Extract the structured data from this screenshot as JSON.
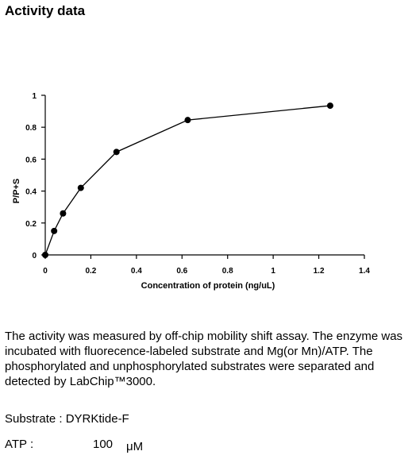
{
  "page": {
    "title": "Activity data",
    "description": "The activity was measured by off-chip mobility shift assay. The enzyme was incubated with fluorecence-labeled  substrate and Mg(or Mn)/ATP. The phosphorylated and unphosphorylated substrates were separated and detected by LabChip™3000.",
    "substrate": "Substrate : DYRKtide-F",
    "atp_label": "ATP :",
    "atp_value": "100",
    "atp_unit": "μM"
  },
  "chart_data": {
    "type": "line",
    "xlabel": "Concentration of protein (ng/uL)",
    "ylabel": "P/P+S",
    "xlim": [
      0,
      1.4
    ],
    "ylim": [
      0,
      1
    ],
    "x_ticks": [
      "0",
      "0.2",
      "0.4",
      "0.6",
      "0.8",
      "1",
      "1.2",
      "1.4"
    ],
    "y_ticks": [
      "0",
      "0.2",
      "0.4",
      "0.6",
      "0.8",
      "1"
    ],
    "grid": false,
    "series": [
      {
        "x": [
          0,
          0.039,
          0.078,
          0.156,
          0.3125,
          0.625,
          1.25
        ],
        "y": [
          0.0,
          0.15,
          0.26,
          0.42,
          0.645,
          0.845,
          0.935
        ]
      }
    ],
    "colors": {
      "line": "#000000",
      "marker": "#000000"
    }
  }
}
